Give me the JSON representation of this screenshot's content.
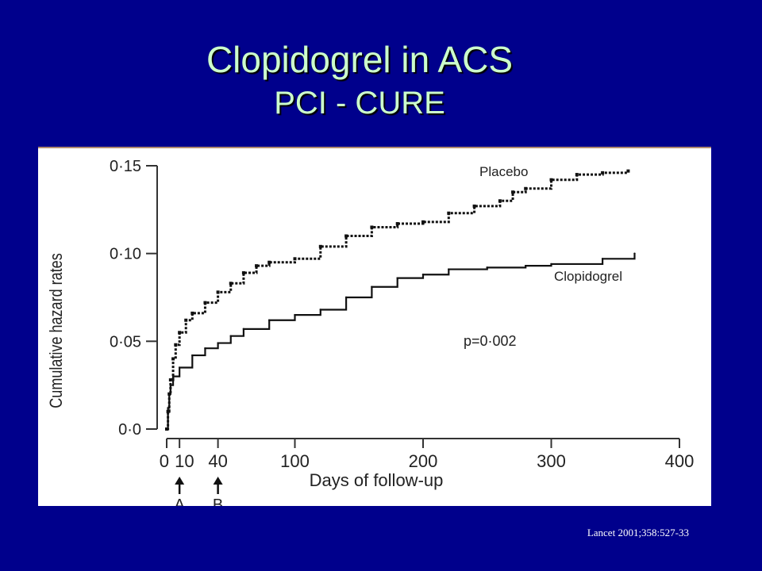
{
  "slide": {
    "title_line1": "Clopidogrel in ACS",
    "title_line2": "PCI - CURE",
    "citation": "Lancet 2001;358:527-33",
    "background_color": "#00008c",
    "title_color": "#ccffcc"
  },
  "chart_data": {
    "type": "line",
    "xlabel": "Days of follow-up",
    "ylabel": "Cumulative hazard rates",
    "xlim": [
      0,
      400
    ],
    "ylim": [
      0,
      0.15
    ],
    "x_ticks": [
      0,
      10,
      40,
      100,
      200,
      300,
      400
    ],
    "x_tick_labels": [
      "0",
      "10",
      "40",
      "100",
      "200",
      "300",
      "400"
    ],
    "y_ticks": [
      0,
      0.05,
      0.1,
      0.15
    ],
    "y_tick_labels": [
      "0·0",
      "0·05",
      "0·10",
      "0·15"
    ],
    "annotations": {
      "p_value": "p=0·002",
      "arrows": [
        {
          "x": 10,
          "label": "A"
        },
        {
          "x": 40,
          "label": "B"
        }
      ]
    },
    "series": [
      {
        "name": "Placebo",
        "style": "dotted",
        "x": [
          0,
          1,
          2,
          3,
          5,
          7,
          10,
          15,
          20,
          30,
          40,
          50,
          60,
          70,
          80,
          100,
          120,
          140,
          160,
          180,
          200,
          220,
          240,
          260,
          270,
          280,
          300,
          320,
          340,
          360
        ],
        "y": [
          0,
          0.01,
          0.02,
          0.028,
          0.04,
          0.048,
          0.055,
          0.062,
          0.066,
          0.072,
          0.078,
          0.083,
          0.089,
          0.093,
          0.095,
          0.097,
          0.104,
          0.11,
          0.115,
          0.117,
          0.118,
          0.123,
          0.127,
          0.13,
          0.135,
          0.137,
          0.142,
          0.145,
          0.146,
          0.147
        ]
      },
      {
        "name": "Clopidogrel",
        "style": "solid",
        "x": [
          0,
          1,
          2,
          3,
          5,
          10,
          20,
          30,
          40,
          50,
          60,
          80,
          100,
          120,
          140,
          160,
          180,
          200,
          220,
          250,
          280,
          300,
          340,
          365
        ],
        "y": [
          0,
          0.012,
          0.02,
          0.025,
          0.03,
          0.035,
          0.042,
          0.046,
          0.049,
          0.053,
          0.057,
          0.062,
          0.065,
          0.068,
          0.075,
          0.081,
          0.086,
          0.088,
          0.091,
          0.092,
          0.093,
          0.094,
          0.097,
          0.1
        ]
      }
    ]
  }
}
